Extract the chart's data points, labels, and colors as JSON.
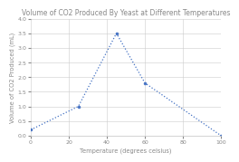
{
  "title": "Volume of CO2 Produced By Yeast at Different Temperatures",
  "xlabel": "Temperature (degrees celsius)",
  "ylabel": "Volume of CO2 Produced (mL)",
  "x": [
    0,
    25,
    45,
    60,
    100
  ],
  "y": [
    0.2,
    1.0,
    3.5,
    1.8,
    0.0
  ],
  "xlim": [
    0,
    100
  ],
  "ylim": [
    0,
    4
  ],
  "xticks": [
    0,
    20,
    40,
    60,
    80,
    100
  ],
  "yticks": [
    0,
    0.5,
    1.0,
    1.5,
    2.0,
    2.5,
    3.0,
    3.5,
    4.0
  ],
  "line_color": "#4472c4",
  "marker": "o",
  "marker_size": 2.0,
  "line_width": 0.9,
  "line_style": ":",
  "background_color": "#ffffff",
  "plot_bg_color": "#ffffff",
  "grid_color": "#cccccc",
  "title_fontsize": 5.5,
  "label_fontsize": 4.8,
  "tick_fontsize": 4.5,
  "text_color": "#888888"
}
